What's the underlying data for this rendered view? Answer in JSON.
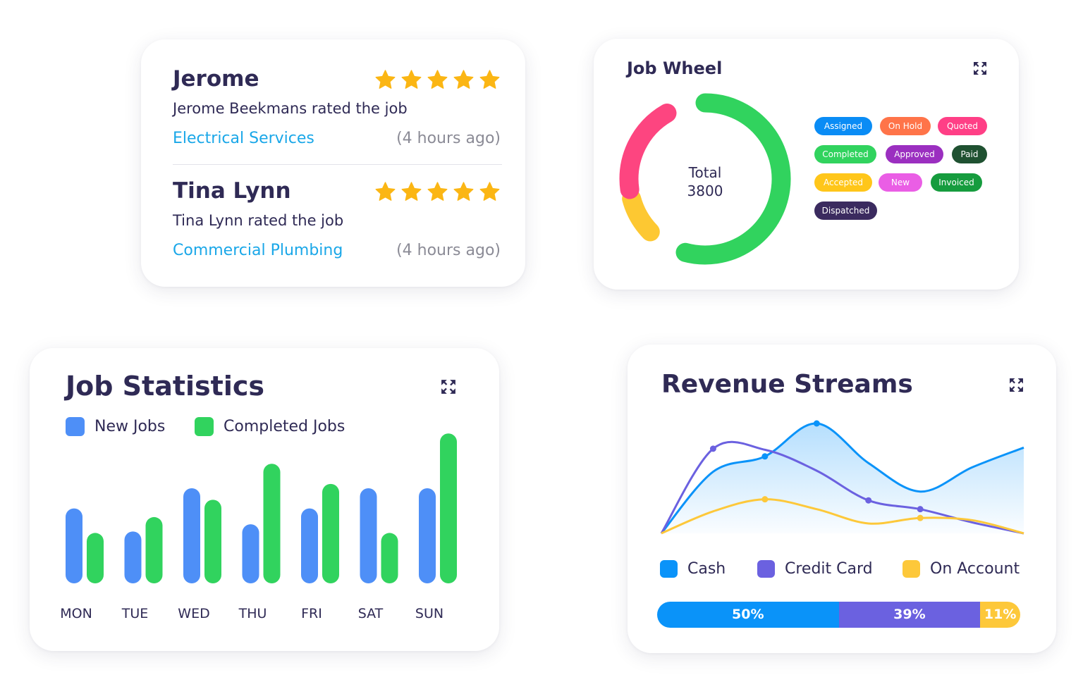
{
  "reviews": [
    {
      "name": "Jerome",
      "rating": 5,
      "text": "Jerome Beekmans rated the job",
      "service": "Electrical Services",
      "time": "(4 hours ago)"
    },
    {
      "name": "Tina Lynn",
      "rating": 5,
      "text": "Tina Lynn rated the job",
      "service": "Commercial Plumbing",
      "time": "(4 hours ago)"
    }
  ],
  "job_wheel": {
    "title": "Job Wheel",
    "total_label": "Total",
    "total_value": "3800",
    "statuses": [
      {
        "label": "Assigned",
        "color": "#0a8cf5"
      },
      {
        "label": "On Hold",
        "color": "#ff7449"
      },
      {
        "label": "Quoted",
        "color": "#ff3f86"
      },
      {
        "label": "Completed",
        "color": "#31d35e"
      },
      {
        "label": "Approved",
        "color": "#9b2fc0"
      },
      {
        "label": "Paid",
        "color": "#1f5131"
      },
      {
        "label": "Accepted",
        "color": "#ffc61a"
      },
      {
        "label": "New",
        "color": "#ea5ee5"
      },
      {
        "label": "Invoiced",
        "color": "#169c3e"
      },
      {
        "label": "Dispatched",
        "color": "#3b2b5f"
      }
    ],
    "segment_colors": [
      "#31d35e",
      "#fdc832",
      "#fd4580"
    ]
  },
  "job_statistics": {
    "title": "Job Statistics",
    "legend": [
      {
        "label": "New Jobs",
        "color": "#4e8ff7"
      },
      {
        "label": "Completed Jobs",
        "color": "#31d35e"
      }
    ],
    "chart_data": {
      "type": "bar",
      "categories": [
        "MON",
        "TUE",
        "WED",
        "THU",
        "FRI",
        "SAT",
        "SUN"
      ],
      "series": [
        {
          "name": "New Jobs",
          "values": [
            52,
            36,
            66,
            41,
            52,
            66,
            66
          ],
          "color": "#4e8ff7"
        },
        {
          "name": "Completed Jobs",
          "values": [
            35,
            46,
            58,
            83,
            69,
            35,
            104
          ],
          "color": "#31d35e"
        }
      ],
      "ylim": [
        0,
        110
      ]
    }
  },
  "revenue_streams": {
    "title": "Revenue Streams",
    "legend": [
      {
        "label": "Cash",
        "color": "#0a93f9"
      },
      {
        "label": "Credit Card",
        "color": "#6b61e0"
      },
      {
        "label": "On Account",
        "color": "#fdc83a"
      }
    ],
    "chart_data": {
      "type": "area",
      "x": [
        0,
        1,
        2,
        3,
        4,
        5,
        6,
        7
      ],
      "series": [
        {
          "name": "Cash",
          "values": [
            0,
            56,
            70,
            100,
            64,
            38,
            60,
            78
          ],
          "color": "#0a93f9"
        },
        {
          "name": "Credit Card",
          "values": [
            0,
            77,
            76,
            57,
            30,
            22,
            10,
            0
          ],
          "color": "#6b61e0"
        },
        {
          "name": "On Account",
          "values": [
            0,
            20,
            31,
            22,
            9,
            14,
            12,
            0
          ],
          "color": "#fdc83a"
        }
      ],
      "ylim": [
        0,
        100
      ]
    },
    "shares": [
      {
        "label": "50%",
        "value": 50,
        "color": "#0a93f9"
      },
      {
        "label": "39%",
        "value": 39,
        "color": "#6b61e0"
      },
      {
        "label": "11%",
        "value": 11,
        "color": "#fdc83a"
      }
    ]
  }
}
